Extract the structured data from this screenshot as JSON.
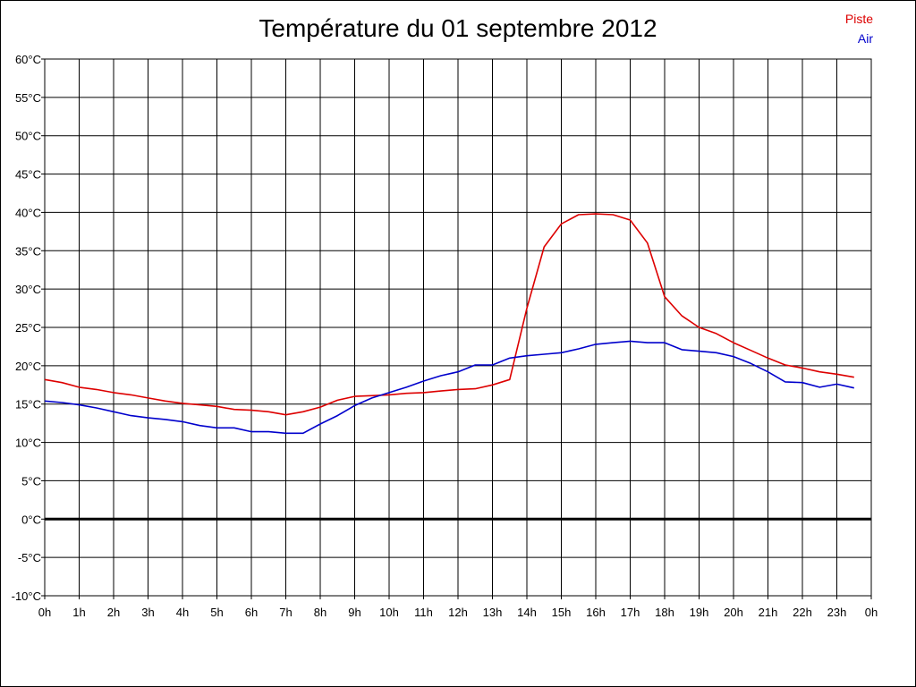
{
  "chart_data": {
    "type": "line",
    "title": "Température du 01 septembre 2012",
    "xlabel": "",
    "ylabel": "",
    "x_tick_labels": [
      "0h",
      "1h",
      "2h",
      "3h",
      "4h",
      "5h",
      "6h",
      "7h",
      "8h",
      "9h",
      "10h",
      "11h",
      "12h",
      "13h",
      "14h",
      "15h",
      "16h",
      "17h",
      "18h",
      "19h",
      "20h",
      "21h",
      "22h",
      "23h",
      "0h"
    ],
    "y_tick_labels": [
      "-10°C",
      "-5°C",
      "0°C",
      "5°C",
      "10°C",
      "15°C",
      "20°C",
      "25°C",
      "30°C",
      "35°C",
      "40°C",
      "45°C",
      "50°C",
      "55°C",
      "60°C"
    ],
    "y_ticks": [
      -10,
      -5,
      0,
      5,
      10,
      15,
      20,
      25,
      30,
      35,
      40,
      45,
      50,
      55,
      60
    ],
    "xlim": [
      0,
      24
    ],
    "ylim": [
      -10,
      60
    ],
    "grid": true,
    "legend": "top-right",
    "zero_line": true,
    "x": [
      0,
      0.5,
      1,
      1.5,
      2,
      2.5,
      3,
      3.5,
      4,
      4.5,
      5,
      5.5,
      6,
      6.5,
      7,
      7.5,
      8,
      8.5,
      9,
      9.5,
      10,
      10.5,
      11,
      11.5,
      12,
      12.5,
      13,
      13.5,
      14,
      14.5,
      15,
      15.5,
      16,
      16.5,
      17,
      17.5,
      18,
      18.5,
      19,
      19.5,
      20,
      20.5,
      21,
      21.5,
      22,
      22.5,
      23,
      23.5
    ],
    "series": [
      {
        "name": "Piste",
        "color": "#dd0000",
        "values": [
          18.2,
          17.8,
          17.2,
          16.9,
          16.5,
          16.2,
          15.8,
          15.4,
          15.1,
          14.9,
          14.7,
          14.3,
          14.2,
          14.0,
          13.6,
          14.0,
          14.6,
          15.5,
          16.0,
          16.1,
          16.2,
          16.4,
          16.5,
          16.7,
          16.9,
          17.0,
          17.5,
          18.2,
          27.5,
          35.5,
          38.5,
          39.7,
          39.8,
          39.7,
          39.0,
          36.0,
          29.0,
          26.5,
          25.0,
          24.2,
          23.0,
          22.0,
          21.0,
          20.1,
          19.7,
          19.2,
          18.9,
          18.5
        ]
      },
      {
        "name": "Air",
        "color": "#0000cc",
        "values": [
          15.4,
          15.2,
          14.9,
          14.5,
          14.0,
          13.5,
          13.2,
          13.0,
          12.7,
          12.2,
          11.9,
          11.9,
          11.4,
          11.4,
          11.2,
          11.2,
          12.4,
          13.5,
          14.8,
          15.8,
          16.5,
          17.2,
          18.0,
          18.7,
          19.2,
          20.1,
          20.1,
          21.0,
          21.3,
          21.5,
          21.7,
          22.2,
          22.8,
          23.0,
          23.2,
          23.0,
          23.0,
          22.1,
          21.9,
          21.7,
          21.2,
          20.3,
          19.2,
          17.9,
          17.8,
          17.2,
          17.6,
          17.1
        ]
      }
    ]
  }
}
